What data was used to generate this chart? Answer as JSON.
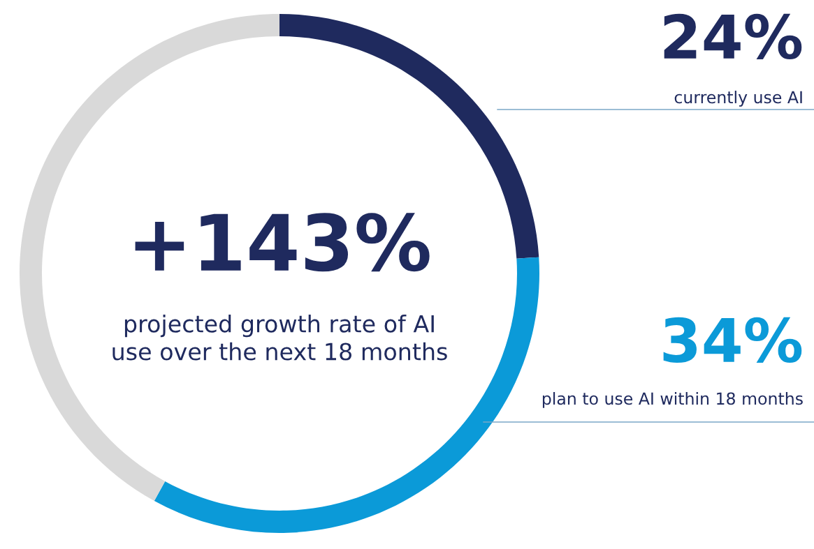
{
  "chart_data": {
    "type": "donut",
    "categories": [
      "currently use AI",
      "plan to use AI within 18 months",
      null
    ],
    "values": [
      24,
      34,
      42
    ],
    "colors": [
      "#1f2a5e",
      "#0b9ad8",
      "#d9d9d9"
    ],
    "value_labels": [
      "24%",
      "34%",
      null
    ],
    "annotations": [
      "+143%",
      "projected growth rate of AI\nuse over the next 18 months"
    ]
  }
}
